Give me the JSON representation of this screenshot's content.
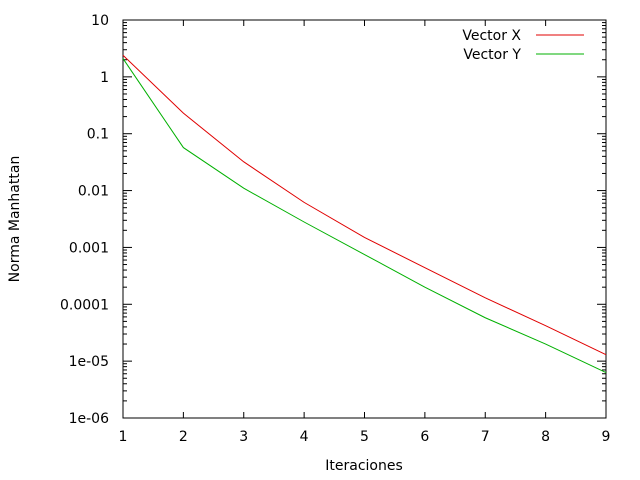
{
  "chart_data": {
    "type": "line",
    "title": "",
    "xlabel": "Iteraciones",
    "ylabel": "Norma Manhattan",
    "x": [
      1,
      2,
      3,
      4,
      5,
      6,
      7,
      8,
      9
    ],
    "xlim": [
      1,
      9
    ],
    "ylim": [
      1e-06,
      10
    ],
    "yscale": "log",
    "x_ticks": [
      "1",
      "2",
      "3",
      "4",
      "5",
      "6",
      "7",
      "8",
      "9"
    ],
    "y_ticks": [
      {
        "value": 10,
        "label": "10"
      },
      {
        "value": 1,
        "label": "1"
      },
      {
        "value": 0.1,
        "label": "0.1"
      },
      {
        "value": 0.01,
        "label": "0.01"
      },
      {
        "value": 0.001,
        "label": "0.001"
      },
      {
        "value": 0.0001,
        "label": "0.0001"
      },
      {
        "value": 1e-05,
        "label": "1e-05"
      },
      {
        "value": 1e-06,
        "label": "1e-06"
      }
    ],
    "grid": false,
    "legend_position": "top-right",
    "series": [
      {
        "name": "Vector X",
        "color": "#e00000",
        "values": [
          2.4,
          0.23,
          0.032,
          0.0062,
          0.0015,
          0.00044,
          0.00013,
          4.2e-05,
          1.3e-05
        ]
      },
      {
        "name": "Vector Y",
        "color": "#00b000",
        "values": [
          2.1,
          0.057,
          0.011,
          0.0028,
          0.00075,
          0.0002,
          5.8e-05,
          2e-05,
          6.3e-06
        ]
      }
    ]
  }
}
